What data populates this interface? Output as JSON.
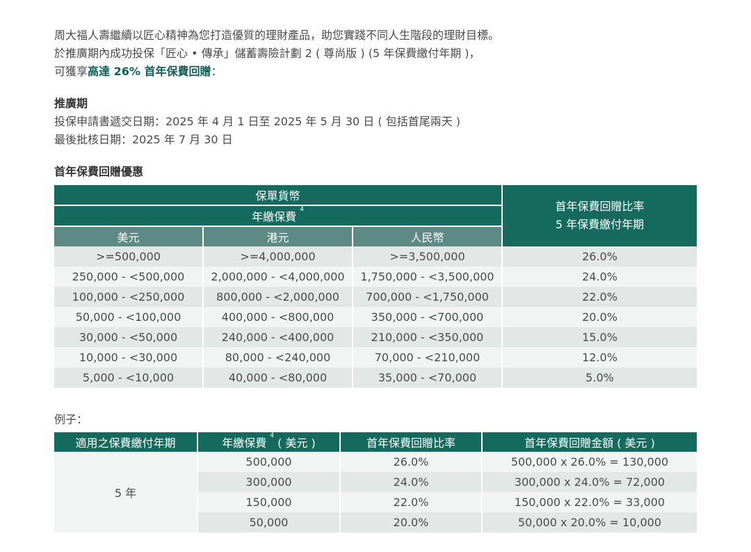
{
  "intro": {
    "line1": "周大福人壽繼續以匠心精神為您打造優質的理財產品，助您實踐不同人生階段的理財目標。",
    "line2": "於推廣期內成功投保「匠心 • 傳承」儲蓄壽險計劃 2 ( 尊尚版 ) (5 年保費繳付年期 )，",
    "line3_prefix": "可獲享",
    "line3_highlight": "高達 26% 首年保費回贈",
    "line3_suffix": "："
  },
  "promo": {
    "title": "推廣期",
    "submission": "投保申請書遞交日期：2025 年 4 月 1 日至 2025 年 5 月 30 日 ( 包括首尾兩天 )",
    "approval": "最後批核日期：2025 年 7 月 30 日"
  },
  "bonus_section": {
    "title": "首年保費回贈優惠",
    "header_currency": "保單貨幣",
    "header_annual": "年繳保費",
    "footnote": "4",
    "col_usd": "美元",
    "col_hkd": "港元",
    "col_rmb": "人民幣",
    "header_rate_line1": "首年保費回贈比率",
    "header_rate_line2": "5 年保費繳付年期",
    "rows": [
      {
        "usd": ">=500,000",
        "hkd": ">=4,000,000",
        "rmb": ">=3,500,000",
        "rate": "26.0%"
      },
      {
        "usd": "250,000 - <500,000",
        "hkd": "2,000,000 - <4,000,000",
        "rmb": "1,750,000 - <3,500,000",
        "rate": "24.0%"
      },
      {
        "usd": "100,000 - <250,000",
        "hkd": "800,000 - <2,000,000",
        "rmb": "700,000 - <1,750,000",
        "rate": "22.0%"
      },
      {
        "usd": "50,000 - <100,000",
        "hkd": "400,000 - <800,000",
        "rmb": "350,000 - <700,000",
        "rate": "20.0%"
      },
      {
        "usd": "30,000 - <50,000",
        "hkd": "240,000 - <400,000",
        "rmb": "210,000 - <350,000",
        "rate": "15.0%"
      },
      {
        "usd": "10,000 - <30,000",
        "hkd": "80,000 - <240,000",
        "rmb": "70,000 - <210,000",
        "rate": "12.0%"
      },
      {
        "usd": "5,000 - <10,000",
        "hkd": "40,000 - <80,000",
        "rmb": "35,000 - <70,000",
        "rate": "5.0%"
      }
    ]
  },
  "example": {
    "label": "例子：",
    "col_term": "適用之保費繳付年期",
    "col_premium_prefix": "年繳保費",
    "col_premium_footnote": "4",
    "col_premium_suffix": " ( 美元 )",
    "col_rate": "首年保費回贈比率",
    "col_amount": "首年保費回贈金額 ( 美元 )",
    "term_value": "5 年",
    "rows": [
      {
        "premium": "500,000",
        "rate": "26.0%",
        "amount": "500,000 x 26.0% = 130,000"
      },
      {
        "premium": "300,000",
        "rate": "24.0%",
        "amount": "300,000 x 24.0% = 72,000"
      },
      {
        "premium": "150,000",
        "rate": "22.0%",
        "amount": "150,000 x 22.0% = 33,000"
      },
      {
        "premium": "50,000",
        "rate": "20.0%",
        "amount": "50,000 x 20.0% = 10,000"
      }
    ]
  }
}
